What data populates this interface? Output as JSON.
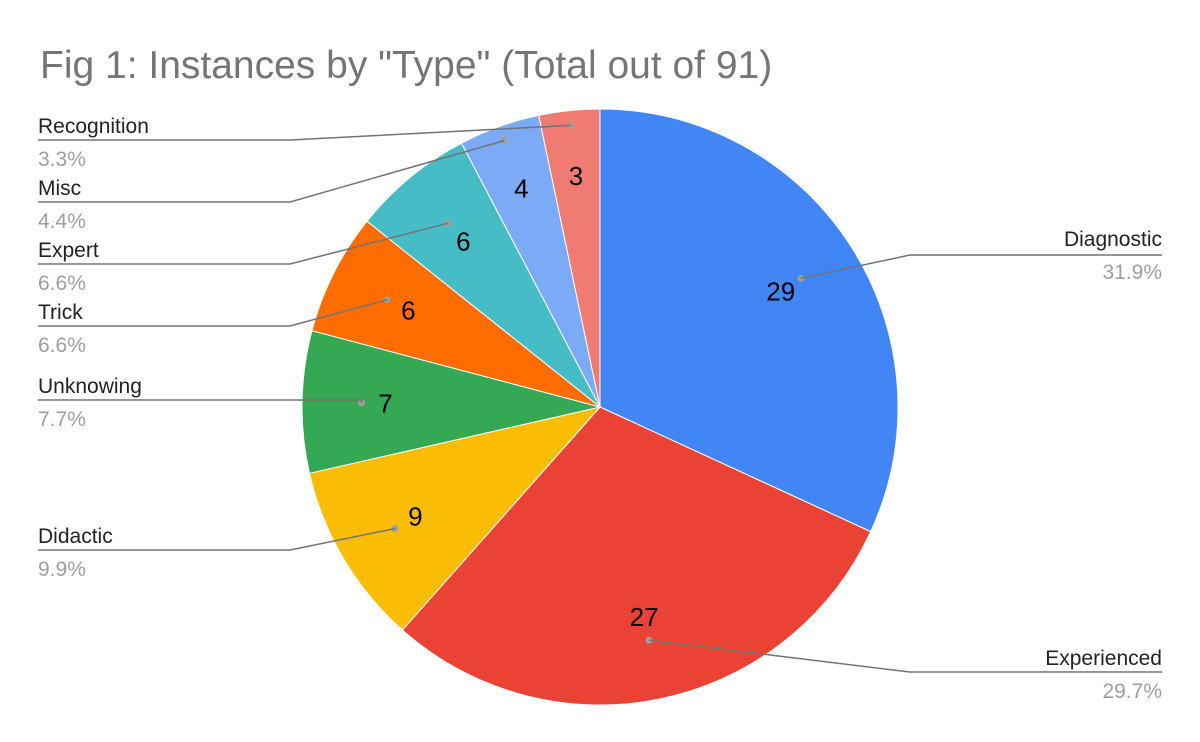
{
  "chart_data": {
    "type": "pie",
    "title": "Fig 1: Instances by \"Type\" (Total out of 91)",
    "total": 91,
    "slices": [
      {
        "label": "Diagnostic",
        "value": 29,
        "value_label": "29",
        "percent_label": "31.9%",
        "color": "#4285f4"
      },
      {
        "label": "Experienced",
        "value": 27,
        "value_label": "27",
        "percent_label": "29.7%",
        "color": "#ea4335"
      },
      {
        "label": "Didactic",
        "value": 9,
        "value_label": "9",
        "percent_label": "9.9%",
        "color": "#fbbc04"
      },
      {
        "label": "Unknowing",
        "value": 7,
        "value_label": "7",
        "percent_label": "7.7%",
        "color": "#34a853"
      },
      {
        "label": "Trick",
        "value": 6,
        "value_label": "6",
        "percent_label": "6.6%",
        "color": "#ff6d01"
      },
      {
        "label": "Expert",
        "value": 6,
        "value_label": "6",
        "percent_label": "6.6%",
        "color": "#46bdc6"
      },
      {
        "label": "Misc",
        "value": 4,
        "value_label": "4",
        "percent_label": "4.4%",
        "color": "#7baaf7"
      },
      {
        "label": "Recognition",
        "value": 3,
        "value_label": "3",
        "percent_label": "3.3%",
        "color": "#f07b72"
      }
    ],
    "start": "12 o'clock",
    "direction": "clockwise",
    "legend": "none",
    "label_placement": "outside with leader lines"
  }
}
